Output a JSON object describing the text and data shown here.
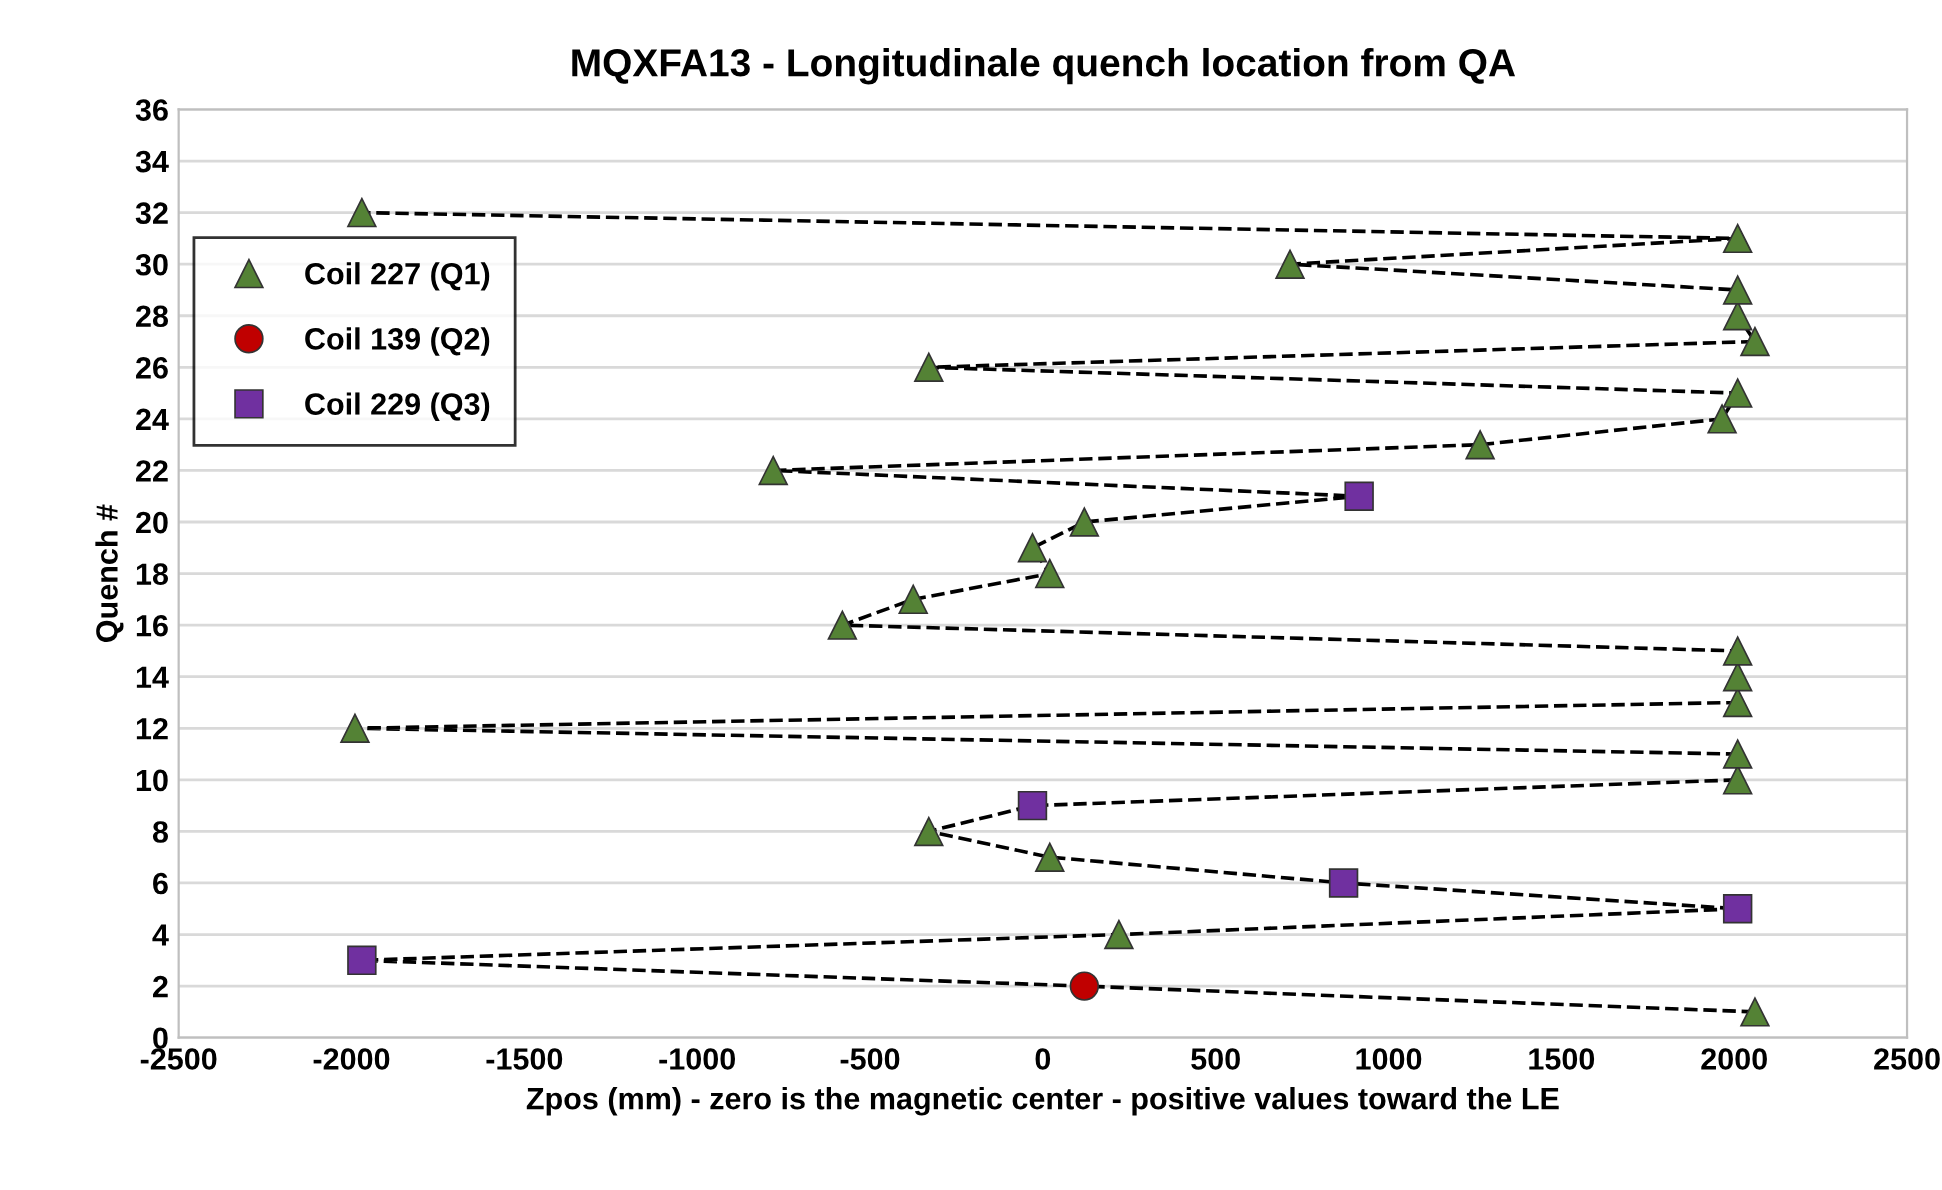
{
  "chart_data": {
    "type": "scatter",
    "title": "MQXFA13 - Longitudinale quench location from QA",
    "xlabel": "Zpos (mm) - zero is the magnetic center - positive values toward the LE",
    "ylabel": "Quench #",
    "xlim": [
      -2500,
      2500
    ],
    "xticks": [
      -2500,
      -2000,
      -1500,
      -1000,
      -500,
      0,
      500,
      1000,
      1500,
      2000,
      2500
    ],
    "ylim": [
      0,
      36
    ],
    "yticks": [
      0,
      2,
      4,
      6,
      8,
      10,
      12,
      14,
      16,
      18,
      20,
      22,
      24,
      26,
      28,
      30,
      32,
      34,
      36
    ],
    "grid": "y",
    "legend": "left",
    "series": [
      {
        "type": "line",
        "color": "#000000",
        "line_style": "dashed",
        "marker": "none",
        "x": [
          2060,
          120,
          -1970,
          220,
          2010,
          870,
          20,
          -330,
          -30,
          2010,
          2010,
          -1990,
          2010,
          2010,
          2010,
          -580,
          -375,
          20,
          -30,
          120,
          915,
          -780,
          1265,
          1965,
          2010,
          -330,
          2060,
          2010,
          2010,
          715,
          2010,
          -1970
        ],
        "values": [
          1,
          2,
          3,
          4,
          5,
          6,
          7,
          8,
          9,
          10,
          11,
          12,
          13,
          14,
          15,
          16,
          17,
          18,
          19,
          20,
          21,
          22,
          23,
          24,
          25,
          26,
          27,
          28,
          29,
          30,
          31,
          32
        ]
      },
      {
        "name": "Coil 227 (Q1)",
        "color": "#548235",
        "marker": "triangle",
        "x": [
          2060,
          220,
          20,
          -330,
          2010,
          2010,
          -1990,
          2010,
          2010,
          2010,
          -580,
          -375,
          20,
          -30,
          120,
          -780,
          1265,
          1965,
          2010,
          -330,
          2060,
          2010,
          2010,
          715,
          2010,
          -1970
        ],
        "values": [
          1,
          4,
          7,
          8,
          10,
          11,
          12,
          13,
          14,
          15,
          16,
          17,
          18,
          19,
          20,
          22,
          23,
          24,
          25,
          26,
          27,
          28,
          29,
          30,
          31,
          32
        ]
      },
      {
        "name": "Coil 139 (Q2)",
        "color": "#c00000",
        "marker": "circle",
        "x": [
          120
        ],
        "values": [
          2
        ]
      },
      {
        "name": "Coil 229 (Q3)",
        "color": "#7030a0",
        "marker": "square",
        "x": [
          -1970,
          2010,
          870,
          -30,
          915
        ],
        "values": [
          3,
          5,
          6,
          9,
          21
        ]
      }
    ]
  }
}
